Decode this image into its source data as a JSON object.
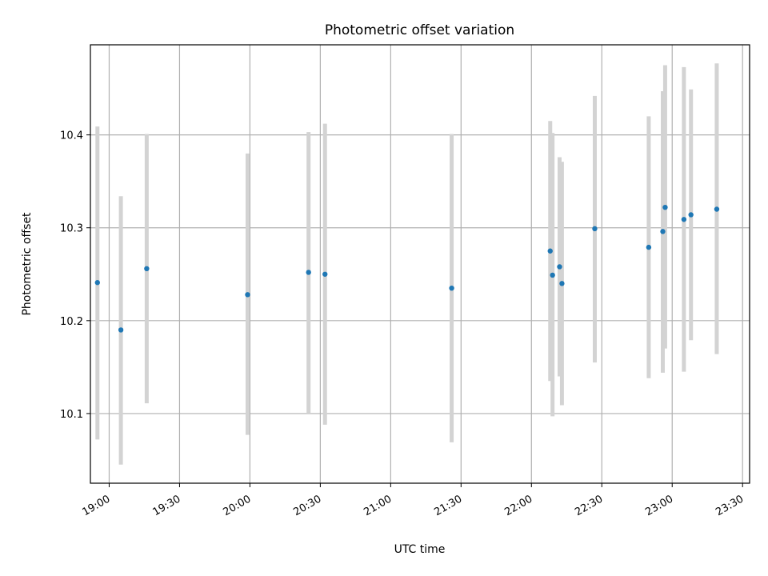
{
  "chart_data": {
    "type": "scatter",
    "title": "Photometric offset variation",
    "xlabel": "UTC time",
    "ylabel": "Photometric offset",
    "x_unit": "UTC time (HH:MM)",
    "xlim": [
      "18:52",
      "23:33"
    ],
    "ylim": [
      10.025,
      10.497
    ],
    "grid": true,
    "x_ticks": [
      "19:00",
      "19:30",
      "20:00",
      "20:30",
      "21:00",
      "21:30",
      "22:00",
      "22:30",
      "23:00",
      "23:30"
    ],
    "y_ticks": [
      10.1,
      10.2,
      10.3,
      10.4
    ],
    "y_tick_labels": [
      "10.1",
      "10.2",
      "10.3",
      "10.4"
    ],
    "colors": {
      "point": "#1f77b4",
      "errorbar": "#d3d3d3",
      "grid": "#b0b0b0"
    },
    "points": [
      {
        "time": "18:55",
        "y": 10.241,
        "low": 10.072,
        "high": 10.409
      },
      {
        "time": "19:05",
        "y": 10.19,
        "low": 10.045,
        "high": 10.334
      },
      {
        "time": "19:16",
        "y": 10.256,
        "low": 10.111,
        "high": 10.401
      },
      {
        "time": "19:59",
        "y": 10.228,
        "low": 10.077,
        "high": 10.38
      },
      {
        "time": "20:25",
        "y": 10.252,
        "low": 10.1,
        "high": 10.403
      },
      {
        "time": "20:32",
        "y": 10.25,
        "low": 10.088,
        "high": 10.412
      },
      {
        "time": "21:26",
        "y": 10.235,
        "low": 10.069,
        "high": 10.401
      },
      {
        "time": "22:08",
        "y": 10.275,
        "low": 10.135,
        "high": 10.415
      },
      {
        "time": "22:09",
        "y": 10.249,
        "low": 10.097,
        "high": 10.402
      },
      {
        "time": "22:12",
        "y": 10.258,
        "low": 10.14,
        "high": 10.376
      },
      {
        "time": "22:13",
        "y": 10.24,
        "low": 10.109,
        "high": 10.371
      },
      {
        "time": "22:27",
        "y": 10.299,
        "low": 10.155,
        "high": 10.442
      },
      {
        "time": "22:50",
        "y": 10.279,
        "low": 10.138,
        "high": 10.42
      },
      {
        "time": "22:56",
        "y": 10.296,
        "low": 10.144,
        "high": 10.447
      },
      {
        "time": "22:57",
        "y": 10.322,
        "low": 10.17,
        "high": 10.475
      },
      {
        "time": "23:05",
        "y": 10.309,
        "low": 10.145,
        "high": 10.473
      },
      {
        "time": "23:08",
        "y": 10.314,
        "low": 10.179,
        "high": 10.449
      },
      {
        "time": "23:19",
        "y": 10.32,
        "low": 10.164,
        "high": 10.477
      }
    ]
  }
}
